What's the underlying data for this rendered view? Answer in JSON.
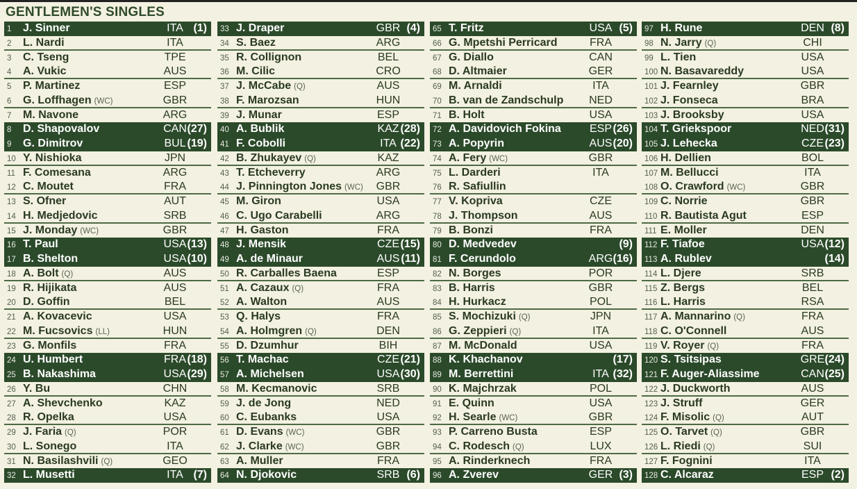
{
  "title": "GENTLEMEN'S SINGLES",
  "colors": {
    "background": "#f3f1e1",
    "seeded_row": "#2b4a2a",
    "text": "#2a3a22"
  },
  "players": [
    [
      "1",
      "J. Sinner",
      "",
      "ITA",
      "(1)"
    ],
    [
      "2",
      "L. Nardi",
      "",
      "ITA",
      ""
    ],
    [
      "3",
      "C. Tseng",
      "",
      "TPE",
      ""
    ],
    [
      "4",
      "A. Vukic",
      "",
      "AUS",
      ""
    ],
    [
      "5",
      "P. Martinez",
      "",
      "ESP",
      ""
    ],
    [
      "6",
      "G. Loffhagen",
      "(WC)",
      "GBR",
      ""
    ],
    [
      "7",
      "M. Navone",
      "",
      "ARG",
      ""
    ],
    [
      "8",
      "D. Shapovalov",
      "",
      "CAN",
      "(27)"
    ],
    [
      "9",
      "G. Dimitrov",
      "",
      "BUL",
      "(19)"
    ],
    [
      "10",
      "Y. Nishioka",
      "",
      "JPN",
      ""
    ],
    [
      "11",
      "F. Comesana",
      "",
      "ARG",
      ""
    ],
    [
      "12",
      "C. Moutet",
      "",
      "FRA",
      ""
    ],
    [
      "13",
      "S. Ofner",
      "",
      "AUT",
      ""
    ],
    [
      "14",
      "H. Medjedovic",
      "",
      "SRB",
      ""
    ],
    [
      "15",
      "J. Monday",
      "(WC)",
      "GBR",
      ""
    ],
    [
      "16",
      "T. Paul",
      "",
      "USA",
      "(13)"
    ],
    [
      "17",
      "B. Shelton",
      "",
      "USA",
      "(10)"
    ],
    [
      "18",
      "A. Bolt",
      "(Q)",
      "AUS",
      ""
    ],
    [
      "19",
      "R. Hijikata",
      "",
      "AUS",
      ""
    ],
    [
      "20",
      "D. Goffin",
      "",
      "BEL",
      ""
    ],
    [
      "21",
      "A. Kovacevic",
      "",
      "USA",
      ""
    ],
    [
      "22",
      "M. Fucsovics",
      "(LL)",
      "HUN",
      ""
    ],
    [
      "23",
      "G. Monfils",
      "",
      "FRA",
      ""
    ],
    [
      "24",
      "U. Humbert",
      "",
      "FRA",
      "(18)"
    ],
    [
      "25",
      "B. Nakashima",
      "",
      "USA",
      "(29)"
    ],
    [
      "26",
      "Y. Bu",
      "",
      "CHN",
      ""
    ],
    [
      "27",
      "A. Shevchenko",
      "",
      "KAZ",
      ""
    ],
    [
      "28",
      "R. Opelka",
      "",
      "USA",
      ""
    ],
    [
      "29",
      "J. Faria",
      "(Q)",
      "POR",
      ""
    ],
    [
      "30",
      "L. Sonego",
      "",
      "ITA",
      ""
    ],
    [
      "31",
      "N. Basilashvili",
      "(Q)",
      "GEO",
      ""
    ],
    [
      "32",
      "L. Musetti",
      "",
      "ITA",
      "(7)"
    ],
    [
      "33",
      "J. Draper",
      "",
      "GBR",
      "(4)"
    ],
    [
      "34",
      "S. Baez",
      "",
      "ARG",
      ""
    ],
    [
      "35",
      "R. Collignon",
      "",
      "BEL",
      ""
    ],
    [
      "36",
      "M. Cilic",
      "",
      "CRO",
      ""
    ],
    [
      "37",
      "J. McCabe",
      "(Q)",
      "AUS",
      ""
    ],
    [
      "38",
      "F. Marozsan",
      "",
      "HUN",
      ""
    ],
    [
      "39",
      "J. Munar",
      "",
      "ESP",
      ""
    ],
    [
      "40",
      "A. Bublik",
      "",
      "KAZ",
      "(28)"
    ],
    [
      "41",
      "F. Cobolli",
      "",
      "ITA",
      "(22)"
    ],
    [
      "42",
      "B. Zhukayev",
      "(Q)",
      "KAZ",
      ""
    ],
    [
      "43",
      "T. Etcheverry",
      "",
      "ARG",
      ""
    ],
    [
      "44",
      "J. Pinnington Jones",
      "(WC)",
      "GBR",
      ""
    ],
    [
      "45",
      "M. Giron",
      "",
      "USA",
      ""
    ],
    [
      "46",
      "C. Ugo Carabelli",
      "",
      "ARG",
      ""
    ],
    [
      "47",
      "H. Gaston",
      "",
      "FRA",
      ""
    ],
    [
      "48",
      "J. Mensik",
      "",
      "CZE",
      "(15)"
    ],
    [
      "49",
      "A. de Minaur",
      "",
      "AUS",
      "(11)"
    ],
    [
      "50",
      "R. Carballes Baena",
      "",
      "ESP",
      ""
    ],
    [
      "51",
      "A. Cazaux",
      "(Q)",
      "FRA",
      ""
    ],
    [
      "52",
      "A. Walton",
      "",
      "AUS",
      ""
    ],
    [
      "53",
      "Q. Halys",
      "",
      "FRA",
      ""
    ],
    [
      "54",
      "A. Holmgren",
      "(Q)",
      "DEN",
      ""
    ],
    [
      "55",
      "D. Dzumhur",
      "",
      "BIH",
      ""
    ],
    [
      "56",
      "T. Machac",
      "",
      "CZE",
      "(21)"
    ],
    [
      "57",
      "A. Michelsen",
      "",
      "USA",
      "(30)"
    ],
    [
      "58",
      "M. Kecmanovic",
      "",
      "SRB",
      ""
    ],
    [
      "59",
      "J. de Jong",
      "",
      "NED",
      ""
    ],
    [
      "60",
      "C. Eubanks",
      "",
      "USA",
      ""
    ],
    [
      "61",
      "D. Evans",
      "(WC)",
      "GBR",
      ""
    ],
    [
      "62",
      "J. Clarke",
      "(WC)",
      "GBR",
      ""
    ],
    [
      "63",
      "A. Muller",
      "",
      "FRA",
      ""
    ],
    [
      "64",
      "N. Djokovic",
      "",
      "SRB",
      "(6)"
    ],
    [
      "65",
      "T. Fritz",
      "",
      "USA",
      "(5)"
    ],
    [
      "66",
      "G. Mpetshi Perricard",
      "",
      "FRA",
      ""
    ],
    [
      "67",
      "G. Diallo",
      "",
      "CAN",
      ""
    ],
    [
      "68",
      "D. Altmaier",
      "",
      "GER",
      ""
    ],
    [
      "69",
      "M. Arnaldi",
      "",
      "ITA",
      ""
    ],
    [
      "70",
      "B. van de Zandschulp",
      "",
      "NED",
      ""
    ],
    [
      "71",
      "B. Holt",
      "",
      "USA",
      ""
    ],
    [
      "72",
      "A. Davidovich Fokina",
      "",
      "ESP",
      "(26)"
    ],
    [
      "73",
      "A. Popyrin",
      "",
      "AUS",
      "(20)"
    ],
    [
      "74",
      "A. Fery",
      "(WC)",
      "GBR",
      ""
    ],
    [
      "75",
      "L. Darderi",
      "",
      "ITA",
      ""
    ],
    [
      "76",
      "R. Safiullin",
      "",
      "",
      ""
    ],
    [
      "77",
      "V. Kopriva",
      "",
      "CZE",
      ""
    ],
    [
      "78",
      "J. Thompson",
      "",
      "AUS",
      ""
    ],
    [
      "79",
      "B. Bonzi",
      "",
      "FRA",
      ""
    ],
    [
      "80",
      "D. Medvedev",
      "",
      "",
      "(9)"
    ],
    [
      "81",
      "F. Cerundolo",
      "",
      "ARG",
      "(16)"
    ],
    [
      "82",
      "N. Borges",
      "",
      "POR",
      ""
    ],
    [
      "83",
      "B. Harris",
      "",
      "GBR",
      ""
    ],
    [
      "84",
      "H. Hurkacz",
      "",
      "POL",
      ""
    ],
    [
      "85",
      "S. Mochizuki",
      "(Q)",
      "JPN",
      ""
    ],
    [
      "86",
      "G. Zeppieri",
      "(Q)",
      "ITA",
      ""
    ],
    [
      "87",
      "M. McDonald",
      "",
      "USA",
      ""
    ],
    [
      "88",
      "K. Khachanov",
      "",
      "",
      "(17)"
    ],
    [
      "89",
      "M. Berrettini",
      "",
      "ITA",
      "(32)"
    ],
    [
      "90",
      "K. Majchrzak",
      "",
      "POL",
      ""
    ],
    [
      "91",
      "E. Quinn",
      "",
      "USA",
      ""
    ],
    [
      "92",
      "H. Searle",
      "(WC)",
      "GBR",
      ""
    ],
    [
      "93",
      "P. Carreno Busta",
      "",
      "ESP",
      ""
    ],
    [
      "94",
      "C. Rodesch",
      "(Q)",
      "LUX",
      ""
    ],
    [
      "95",
      "A. Rinderknech",
      "",
      "FRA",
      ""
    ],
    [
      "96",
      "A. Zverev",
      "",
      "GER",
      "(3)"
    ],
    [
      "97",
      "H. Rune",
      "",
      "DEN",
      "(8)"
    ],
    [
      "98",
      "N. Jarry",
      "(Q)",
      "CHI",
      ""
    ],
    [
      "99",
      "L. Tien",
      "",
      "USA",
      ""
    ],
    [
      "100",
      "N. Basavareddy",
      "",
      "USA",
      ""
    ],
    [
      "101",
      "J. Fearnley",
      "",
      "GBR",
      ""
    ],
    [
      "102",
      "J. Fonseca",
      "",
      "BRA",
      ""
    ],
    [
      "103",
      "J. Brooksby",
      "",
      "USA",
      ""
    ],
    [
      "104",
      "T. Griekspoor",
      "",
      "NED",
      "(31)"
    ],
    [
      "105",
      "J. Lehecka",
      "",
      "CZE",
      "(23)"
    ],
    [
      "106",
      "H. Dellien",
      "",
      "BOL",
      ""
    ],
    [
      "107",
      "M. Bellucci",
      "",
      "ITA",
      ""
    ],
    [
      "108",
      "O. Crawford",
      "(WC)",
      "GBR",
      ""
    ],
    [
      "109",
      "C. Norrie",
      "",
      "GBR",
      ""
    ],
    [
      "110",
      "R. Bautista Agut",
      "",
      "ESP",
      ""
    ],
    [
      "111",
      "E. Moller",
      "",
      "DEN",
      ""
    ],
    [
      "112",
      "F. Tiafoe",
      "",
      "USA",
      "(12)"
    ],
    [
      "113",
      "A. Rublev",
      "",
      "",
      "(14)"
    ],
    [
      "114",
      "L. Djere",
      "",
      "SRB",
      ""
    ],
    [
      "115",
      "Z. Bergs",
      "",
      "BEL",
      ""
    ],
    [
      "116",
      "L. Harris",
      "",
      "RSA",
      ""
    ],
    [
      "117",
      "A. Mannarino",
      "(Q)",
      "FRA",
      ""
    ],
    [
      "118",
      "C. O'Connell",
      "",
      "AUS",
      ""
    ],
    [
      "119",
      "V. Royer",
      "(Q)",
      "FRA",
      ""
    ],
    [
      "120",
      "S. Tsitsipas",
      "",
      "GRE",
      "(24)"
    ],
    [
      "121",
      "F. Auger-Aliassime",
      "",
      "CAN",
      "(25)"
    ],
    [
      "122",
      "J. Duckworth",
      "",
      "AUS",
      ""
    ],
    [
      "123",
      "J. Struff",
      "",
      "GER",
      ""
    ],
    [
      "124",
      "F. Misolic",
      "(Q)",
      "AUT",
      ""
    ],
    [
      "125",
      "O. Tarvet",
      "(Q)",
      "GBR",
      ""
    ],
    [
      "126",
      "L. Riedi",
      "(Q)",
      "SUI",
      ""
    ],
    [
      "127",
      "F. Fognini",
      "",
      "ITA",
      ""
    ],
    [
      "128",
      "C. Alcaraz",
      "",
      "ESP",
      "(2)"
    ]
  ]
}
